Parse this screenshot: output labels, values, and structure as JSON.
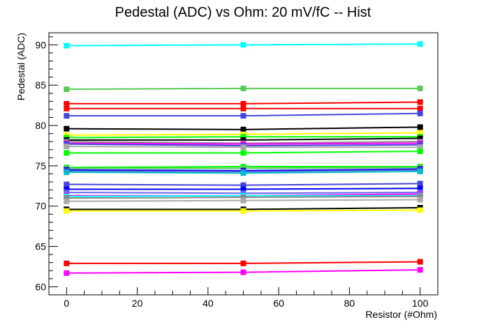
{
  "chart_data": {
    "type": "line",
    "title": "Pedestal (ADC) vs Ohm: 20 mV/fC -- Hist",
    "xlabel": "Resistor (#Ohm)",
    "ylabel": "Pedestal (ADC)",
    "xlim": [
      -5,
      105
    ],
    "ylim": [
      59,
      91.5
    ],
    "x": [
      0,
      50,
      100
    ],
    "x_ticks": [
      0,
      20,
      40,
      60,
      80,
      100
    ],
    "y_ticks": [
      60,
      65,
      70,
      75,
      80,
      85,
      90
    ],
    "grid": false,
    "legend": "none",
    "series": [
      {
        "color": "#00ffff",
        "values": [
          89.9,
          90.0,
          90.1
        ]
      },
      {
        "color": "#55cc55",
        "values": [
          84.5,
          84.6,
          84.6
        ]
      },
      {
        "color": "#ff0000",
        "values": [
          82.7,
          82.7,
          82.9
        ]
      },
      {
        "color": "#ff0000",
        "values": [
          82.1,
          82.1,
          82.1
        ]
      },
      {
        "color": "#4444dd",
        "values": [
          81.2,
          81.2,
          81.5
        ]
      },
      {
        "color": "#000000",
        "values": [
          79.6,
          79.5,
          79.8
        ]
      },
      {
        "color": "#ffff00",
        "values": [
          78.8,
          78.9,
          79.1
        ]
      },
      {
        "color": "#00ff00",
        "values": [
          78.5,
          78.6,
          78.6
        ]
      },
      {
        "color": "#000000",
        "values": [
          78.2,
          78.2,
          78.4
        ]
      },
      {
        "color": "#888888",
        "values": [
          78.0,
          77.8,
          78.0
        ]
      },
      {
        "color": "#ff00ff",
        "values": [
          77.8,
          77.7,
          77.8
        ]
      },
      {
        "color": "#4444dd",
        "values": [
          77.7,
          77.5,
          77.6
        ]
      },
      {
        "color": "#aaaaaa",
        "values": [
          77.4,
          77.3,
          77.3
        ]
      },
      {
        "color": "#00ff00",
        "values": [
          76.6,
          76.6,
          76.8
        ]
      },
      {
        "color": "#00ff00",
        "values": [
          74.8,
          74.9,
          74.9
        ]
      },
      {
        "color": "#55cc55",
        "values": [
          74.7,
          74.7,
          74.8
        ]
      },
      {
        "color": "#0000ff",
        "values": [
          74.5,
          74.4,
          74.6
        ]
      },
      {
        "color": "#4444dd",
        "values": [
          74.4,
          74.3,
          74.5
        ]
      },
      {
        "color": "#00bbcc",
        "values": [
          74.2,
          74.1,
          74.3
        ]
      },
      {
        "color": "#4444dd",
        "values": [
          72.7,
          72.6,
          72.8
        ]
      },
      {
        "color": "#0000ff",
        "values": [
          72.1,
          72.1,
          72.2
        ]
      },
      {
        "color": "#6666ee",
        "values": [
          71.7,
          71.6,
          71.7
        ]
      },
      {
        "color": "#ff00ff",
        "values": [
          71.3,
          71.3,
          71.5
        ]
      },
      {
        "color": "#00ffff",
        "values": [
          71.2,
          71.3,
          71.3
        ]
      },
      {
        "color": "#888888",
        "values": [
          71.0,
          71.1,
          71.2
        ]
      },
      {
        "color": "#aaaaaa",
        "values": [
          70.6,
          70.7,
          70.8
        ]
      },
      {
        "color": "#000000",
        "values": [
          69.6,
          69.6,
          69.8
        ]
      },
      {
        "color": "#ffff00",
        "values": [
          69.4,
          69.4,
          69.5
        ]
      },
      {
        "color": "#ff0000",
        "values": [
          62.9,
          62.9,
          63.1
        ]
      },
      {
        "color": "#ff00ff",
        "values": [
          61.7,
          61.8,
          62.1
        ]
      }
    ]
  }
}
